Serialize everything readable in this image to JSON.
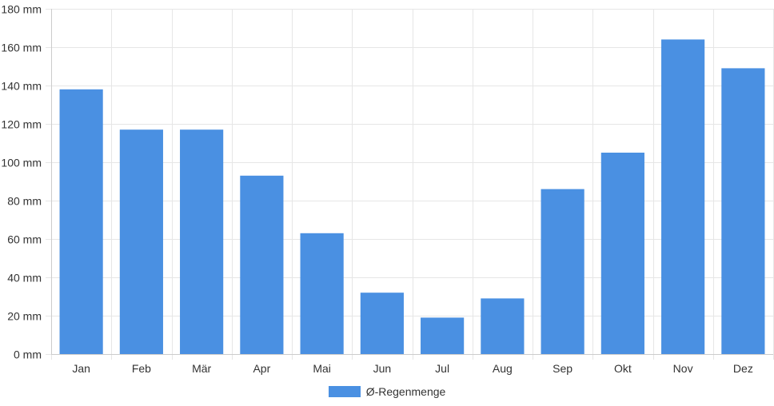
{
  "chart_data": {
    "type": "bar",
    "categories": [
      "Jan",
      "Feb",
      "Mär",
      "Apr",
      "Mai",
      "Jun",
      "Jul",
      "Aug",
      "Sep",
      "Okt",
      "Nov",
      "Dez"
    ],
    "series": [
      {
        "name": "Ø-Regenmenge",
        "values": [
          138,
          117,
          117,
          93,
          63,
          32,
          19,
          29,
          86,
          105,
          164,
          149
        ]
      }
    ],
    "unit": "mm",
    "ylim": [
      0,
      180
    ],
    "yticks": [
      0,
      20,
      40,
      60,
      80,
      100,
      120,
      140,
      160,
      180
    ],
    "ytick_labels": [
      "0 mm",
      "20 mm",
      "40 mm",
      "60 mm",
      "80 mm",
      "100 mm",
      "120 mm",
      "140 mm",
      "160 mm",
      "180 mm"
    ],
    "grid": true,
    "legend_position": "bottom",
    "colors": {
      "bar": "#4a90e2",
      "grid": "#e6e6e6",
      "axis": "#cccccc",
      "text": "#333333"
    }
  }
}
